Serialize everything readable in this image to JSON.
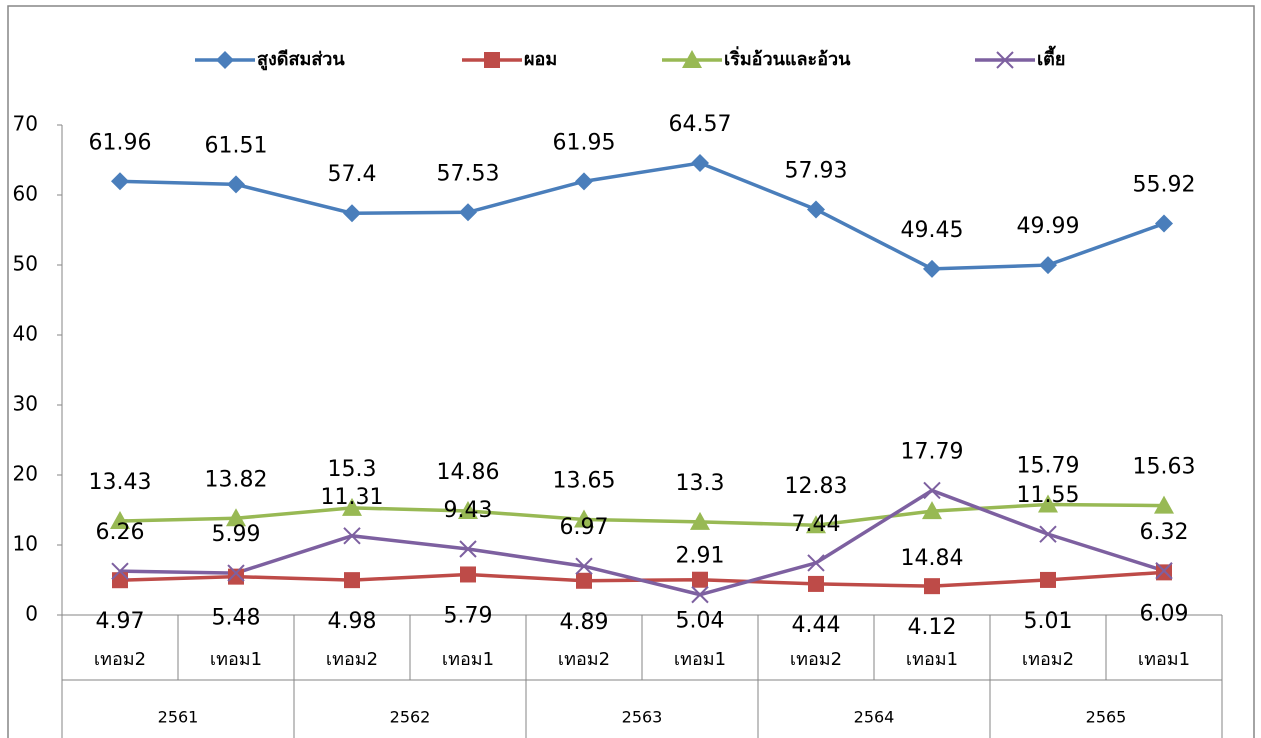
{
  "chart_data": {
    "type": "line",
    "categories": [
      "เทอม2",
      "เทอม1",
      "เทอม2",
      "เทอม1",
      "เทอม2",
      "เทอม1",
      "เทอม2",
      "เทอม1",
      "เทอม2",
      "เทอม1"
    ],
    "groups": [
      "2561",
      "2562",
      "2563",
      "2564",
      "2565"
    ],
    "series": [
      {
        "name": "สูงดีสมส่วน",
        "color": "#4a7ebb",
        "marker": "diamond",
        "values": [
          61.96,
          61.51,
          57.4,
          57.53,
          61.95,
          64.57,
          57.93,
          49.45,
          49.99,
          55.92
        ]
      },
      {
        "name": "ผอม",
        "color": "#be4b48",
        "marker": "square",
        "values": [
          4.97,
          5.48,
          4.98,
          5.79,
          4.89,
          5.04,
          4.44,
          4.12,
          5.01,
          6.09
        ]
      },
      {
        "name": "เริ่มอ้วนและอ้วน",
        "color": "#98b954",
        "marker": "triangle",
        "values": [
          13.43,
          13.82,
          15.3,
          14.86,
          13.65,
          13.3,
          12.83,
          14.84,
          15.79,
          15.63
        ]
      },
      {
        "name": "เตี้ย",
        "color": "#7d60a0",
        "marker": "x",
        "values": [
          6.26,
          5.99,
          11.31,
          9.43,
          6.97,
          2.91,
          7.44,
          17.79,
          11.55,
          6.32
        ]
      }
    ],
    "ylim": [
      0,
      70
    ],
    "yticks": [
      0,
      10,
      20,
      30,
      40,
      50,
      60,
      70
    ],
    "grid": false,
    "legend": "top"
  }
}
